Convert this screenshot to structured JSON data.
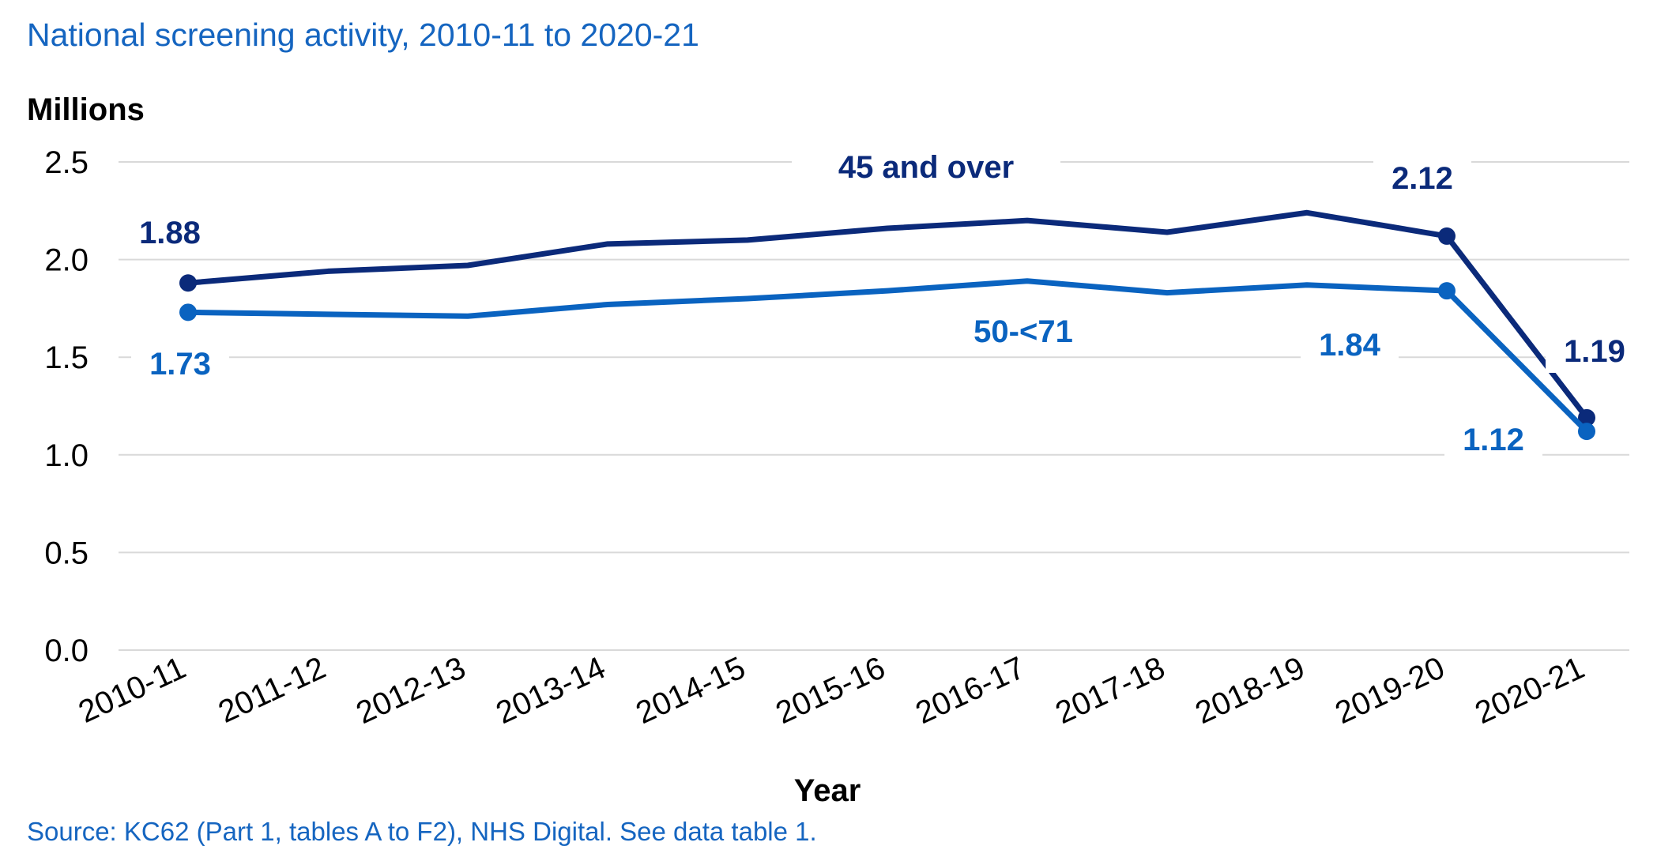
{
  "chart_data": {
    "type": "line",
    "title": "National screening activity, 2010-11 to 2020-21",
    "ylabel": "Millions",
    "xlabel": "Year",
    "source": "Source: KC62 (Part 1, tables A to F2), NHS Digital. See data table 1.",
    "categories": [
      "2010-11",
      "2011-12",
      "2012-13",
      "2013-14",
      "2014-15",
      "2015-16",
      "2016-17",
      "2017-18",
      "2018-19",
      "2019-20",
      "2020-21"
    ],
    "ylim": [
      0,
      2.5
    ],
    "yticks": [
      "0.0",
      "0.5",
      "1.0",
      "1.5",
      "2.0",
      "2.5"
    ],
    "grid": true,
    "series": [
      {
        "name": "45 and over",
        "color": "#0b2a7a",
        "values": [
          1.88,
          1.94,
          1.97,
          2.08,
          2.1,
          2.16,
          2.2,
          2.14,
          2.24,
          2.12,
          1.19
        ],
        "labels": [
          {
            "index": 0,
            "text": "1.88"
          },
          {
            "index": 9,
            "text": "2.12"
          },
          {
            "index": 10,
            "text": "1.19"
          }
        ]
      },
      {
        "name": "50-<71",
        "color": "#0a63c0",
        "values": [
          1.73,
          1.72,
          1.71,
          1.77,
          1.8,
          1.84,
          1.89,
          1.83,
          1.87,
          1.84,
          1.12
        ],
        "labels": [
          {
            "index": 0,
            "text": "1.73"
          },
          {
            "index": 9,
            "text": "1.84"
          },
          {
            "index": 10,
            "text": "1.12"
          }
        ]
      }
    ]
  }
}
